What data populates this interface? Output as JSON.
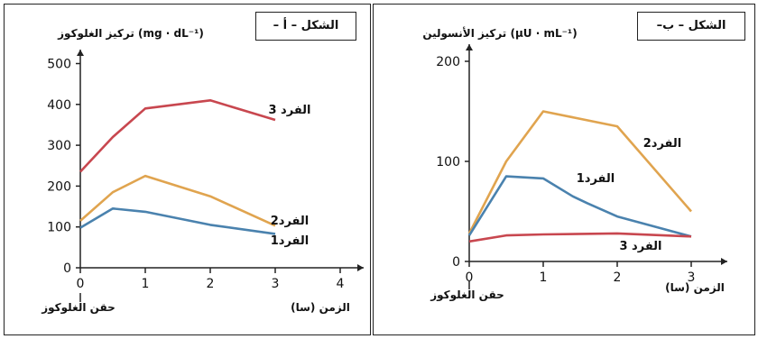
{
  "chart_data": [
    {
      "type": "line",
      "figure_label": "الشكل – أ –",
      "ylabel": "تركيز الغلوكوز (mg · dL⁻¹)",
      "xlabel": "الزمن (سا)",
      "annotation": "حقن الغلوكوز",
      "xlim": [
        0,
        4
      ],
      "ylim": [
        0,
        500
      ],
      "xticks": [
        "0",
        "1",
        "2",
        "3",
        "4"
      ],
      "yticks": [
        "0",
        "100",
        "200",
        "300",
        "400",
        "500"
      ],
      "series": [
        {
          "name": "الفرد 3",
          "color": "#c8474f",
          "x": [
            0,
            0.5,
            1,
            2,
            3
          ],
          "y": [
            235,
            320,
            390,
            410,
            362
          ]
        },
        {
          "name": "الفرد2",
          "color": "#e0a44f",
          "x": [
            0,
            0.5,
            1,
            2,
            3
          ],
          "y": [
            115,
            185,
            225,
            175,
            103
          ]
        },
        {
          "name": "الفرد1",
          "color": "#4a82ae",
          "x": [
            0,
            0.5,
            1,
            2,
            3
          ],
          "y": [
            98,
            145,
            137,
            105,
            83
          ]
        }
      ]
    },
    {
      "type": "line",
      "figure_label": "الشكل – ب–",
      "ylabel": "تركيز الأنسولين (μU · mL⁻¹)",
      "xlabel": "الزمن (سا)",
      "annotation": "حقن الغلوكوز",
      "xlim": [
        0,
        3
      ],
      "ylim": [
        0,
        200
      ],
      "xticks": [
        "0",
        "1",
        "2",
        "3"
      ],
      "yticks": [
        "0",
        "100",
        "200"
      ],
      "series": [
        {
          "name": "الفرد2",
          "color": "#e0a44f",
          "x": [
            0,
            0.5,
            1,
            2,
            3
          ],
          "y": [
            28,
            100,
            150,
            135,
            50
          ]
        },
        {
          "name": "الفرد1",
          "color": "#4a82ae",
          "x": [
            0,
            0.5,
            1,
            1.4,
            1.6,
            2,
            3
          ],
          "y": [
            26,
            85,
            83,
            65,
            58,
            45,
            25
          ]
        },
        {
          "name": "الفرد 3",
          "color": "#c8474f",
          "x": [
            0,
            0.5,
            1,
            2,
            3
          ],
          "y": [
            20,
            26,
            27,
            28,
            25
          ]
        }
      ]
    }
  ]
}
